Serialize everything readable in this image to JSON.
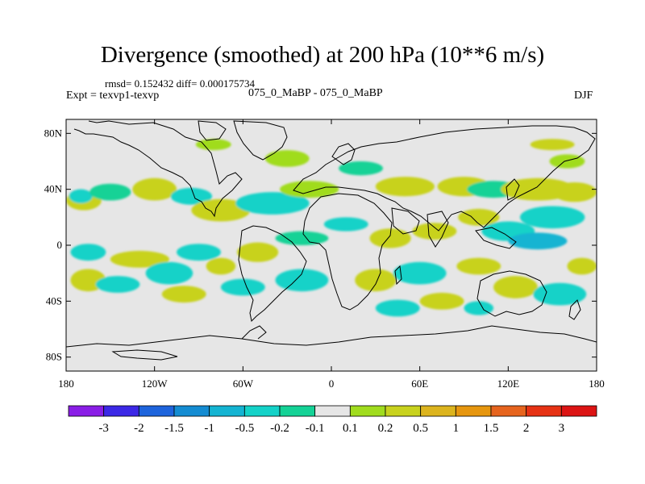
{
  "chart_data": {
    "type": "heatmap",
    "title": "Divergence (smoothed) at 200 hPa (10**6 m/s)",
    "stats_text": "rmsd= 0.152432 diff= 0.000175734",
    "experiment_text": "Expt = texvp1-texvp",
    "cases_text": "075_0_MaBP - 075_0_MaBP",
    "season": "DJF",
    "x_range": [
      -180,
      180
    ],
    "y_range": [
      -90,
      90
    ],
    "x_ticks": [
      {
        "value": -180,
        "label": "180"
      },
      {
        "value": -120,
        "label": "120W"
      },
      {
        "value": -60,
        "label": "60W"
      },
      {
        "value": 0,
        "label": "0"
      },
      {
        "value": 60,
        "label": "60E"
      },
      {
        "value": 120,
        "label": "120E"
      },
      {
        "value": 180,
        "label": "180"
      }
    ],
    "y_ticks": [
      {
        "value": 80,
        "label": "80N"
      },
      {
        "value": 40,
        "label": "40N"
      },
      {
        "value": 0,
        "label": "0"
      },
      {
        "value": -40,
        "label": "40S"
      },
      {
        "value": -80,
        "label": "80S"
      }
    ],
    "colorbar": {
      "levels": [
        "-3",
        "-2",
        "-1.5",
        "-1",
        "-0.5",
        "-0.2",
        "-0.1",
        "0.1",
        "0.2",
        "0.5",
        "1",
        "1.5",
        "2",
        "3"
      ],
      "colors": [
        "#8a1ee6",
        "#3c28e6",
        "#1e64dc",
        "#148cd2",
        "#14b4d2",
        "#14d2c8",
        "#14d296",
        "#e6e6e6",
        "#a0dc1e",
        "#c8d21e",
        "#dcb41e",
        "#e6960f",
        "#e6641e",
        "#e63214",
        "#dc1414"
      ]
    },
    "blobs": [
      {
        "lon": -168,
        "lat": 32,
        "rx": 12,
        "ry": 7,
        "value": 0.3
      },
      {
        "lon": -170,
        "lat": 35,
        "rx": 8,
        "ry": 5,
        "value": -0.3
      },
      {
        "lon": -150,
        "lat": 38,
        "rx": 14,
        "ry": 6,
        "value": -0.15
      },
      {
        "lon": -120,
        "lat": 40,
        "rx": 15,
        "ry": 8,
        "value": 0.25
      },
      {
        "lon": -95,
        "lat": 35,
        "rx": 14,
        "ry": 6,
        "value": -0.2
      },
      {
        "lon": -75,
        "lat": 25,
        "rx": 20,
        "ry": 8,
        "value": 0.3
      },
      {
        "lon": -40,
        "lat": 30,
        "rx": 25,
        "ry": 8,
        "value": -0.3
      },
      {
        "lon": -15,
        "lat": 40,
        "rx": 20,
        "ry": 6,
        "value": 0.2
      },
      {
        "lon": -30,
        "lat": 62,
        "rx": 15,
        "ry": 6,
        "value": 0.2
      },
      {
        "lon": -80,
        "lat": 72,
        "rx": 12,
        "ry": 4,
        "value": 0.2
      },
      {
        "lon": 20,
        "lat": 55,
        "rx": 15,
        "ry": 5,
        "value": -0.15
      },
      {
        "lon": 50,
        "lat": 42,
        "rx": 20,
        "ry": 7,
        "value": 0.25
      },
      {
        "lon": 90,
        "lat": 42,
        "rx": 18,
        "ry": 7,
        "value": 0.3
      },
      {
        "lon": 110,
        "lat": 40,
        "rx": 18,
        "ry": 6,
        "value": -0.15
      },
      {
        "lon": 140,
        "lat": 40,
        "rx": 25,
        "ry": 8,
        "value": 0.3
      },
      {
        "lon": 165,
        "lat": 38,
        "rx": 15,
        "ry": 7,
        "value": 0.4
      },
      {
        "lon": 150,
        "lat": 20,
        "rx": 22,
        "ry": 8,
        "value": -0.3
      },
      {
        "lon": 120,
        "lat": 10,
        "rx": 18,
        "ry": 7,
        "value": -0.25
      },
      {
        "lon": 140,
        "lat": 3,
        "rx": 20,
        "ry": 6,
        "value": -0.6
      },
      {
        "lon": 100,
        "lat": 20,
        "rx": 14,
        "ry": 6,
        "value": 0.3
      },
      {
        "lon": 70,
        "lat": 10,
        "rx": 15,
        "ry": 6,
        "value": 0.3
      },
      {
        "lon": 40,
        "lat": 5,
        "rx": 14,
        "ry": 7,
        "value": 0.5
      },
      {
        "lon": 10,
        "lat": 15,
        "rx": 15,
        "ry": 5,
        "value": -0.2
      },
      {
        "lon": -20,
        "lat": 5,
        "rx": 18,
        "ry": 5,
        "value": -0.15
      },
      {
        "lon": -50,
        "lat": -5,
        "rx": 14,
        "ry": 7,
        "value": 0.3
      },
      {
        "lon": -90,
        "lat": -5,
        "rx": 15,
        "ry": 6,
        "value": -0.2
      },
      {
        "lon": -130,
        "lat": -10,
        "rx": 20,
        "ry": 6,
        "value": 0.25
      },
      {
        "lon": -165,
        "lat": -5,
        "rx": 12,
        "ry": 6,
        "value": -0.2
      },
      {
        "lon": -165,
        "lat": -25,
        "rx": 12,
        "ry": 8,
        "value": 0.5
      },
      {
        "lon": -145,
        "lat": -28,
        "rx": 15,
        "ry": 6,
        "value": -0.3
      },
      {
        "lon": -110,
        "lat": -20,
        "rx": 16,
        "ry": 8,
        "value": -0.3
      },
      {
        "lon": -100,
        "lat": -35,
        "rx": 15,
        "ry": 6,
        "value": 0.3
      },
      {
        "lon": -75,
        "lat": -15,
        "rx": 10,
        "ry": 6,
        "value": 0.5
      },
      {
        "lon": -60,
        "lat": -30,
        "rx": 15,
        "ry": 6,
        "value": -0.2
      },
      {
        "lon": -20,
        "lat": -25,
        "rx": 18,
        "ry": 8,
        "value": -0.3
      },
      {
        "lon": 30,
        "lat": -25,
        "rx": 14,
        "ry": 8,
        "value": 0.3
      },
      {
        "lon": 60,
        "lat": -20,
        "rx": 18,
        "ry": 8,
        "value": -0.2
      },
      {
        "lon": 75,
        "lat": -40,
        "rx": 15,
        "ry": 6,
        "value": 0.25
      },
      {
        "lon": 100,
        "lat": -15,
        "rx": 15,
        "ry": 6,
        "value": 0.3
      },
      {
        "lon": 125,
        "lat": -30,
        "rx": 15,
        "ry": 8,
        "value": 0.4
      },
      {
        "lon": 155,
        "lat": -35,
        "rx": 18,
        "ry": 8,
        "value": -0.3
      },
      {
        "lon": 170,
        "lat": -15,
        "rx": 10,
        "ry": 6,
        "value": 0.3
      },
      {
        "lon": 45,
        "lat": -45,
        "rx": 15,
        "ry": 6,
        "value": -0.2
      },
      {
        "lon": 100,
        "lat": -45,
        "rx": 10,
        "ry": 5,
        "value": -0.2
      },
      {
        "lon": 160,
        "lat": 60,
        "rx": 12,
        "ry": 5,
        "value": 0.2
      },
      {
        "lon": 150,
        "lat": 72,
        "rx": 15,
        "ry": 4,
        "value": 0.25
      }
    ]
  }
}
